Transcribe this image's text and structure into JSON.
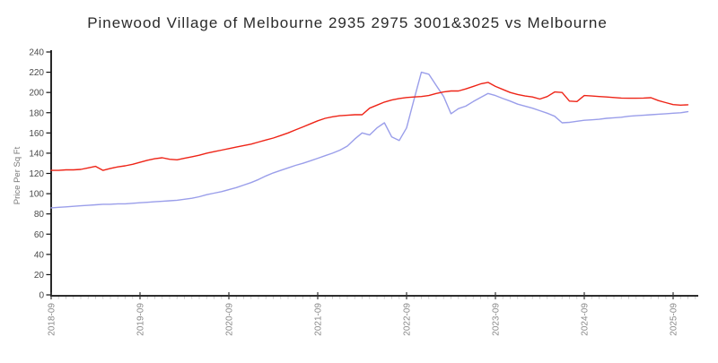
{
  "title": "Pinewood Village of Melbourne 2935 2975 3001&3025 vs Melbourne",
  "colors": {
    "red_line": "#ee2417",
    "blue_line": "#9a9eea",
    "axis": "#111111",
    "y_tick_label": "#4a4a4a",
    "x_tick_label": "#8a8a8a",
    "minor_tick": "#c9c9c9",
    "title_text": "#2a2a2a",
    "y_axis_label": "#777777",
    "background": "#ffffff"
  },
  "chart_data": {
    "type": "line",
    "title": "Pinewood Village of Melbourne 2935 2975 3001&3025 vs Melbourne",
    "xlabel": "",
    "ylabel": "Price Per Sq Ft",
    "ylim": [
      0,
      240
    ],
    "yticks": [
      0,
      20,
      40,
      60,
      80,
      100,
      120,
      140,
      160,
      180,
      200,
      220,
      240
    ],
    "grid": false,
    "legend_position": "none",
    "x_unit": "month",
    "x_start": "2018-09",
    "x_end": "2025-11",
    "xtick_labels": [
      "2018-09",
      "2019-09",
      "2020-09",
      "2021-09",
      "2022-09",
      "2023-09",
      "2024-09",
      "2025-09"
    ],
    "xtick_month_indices": [
      0,
      12,
      24,
      36,
      48,
      60,
      72,
      84
    ],
    "xtick_rotation_deg": -90,
    "series": [
      {
        "name": "blue-line",
        "color": "#9a9eea",
        "values": [
          86,
          86.5,
          87,
          87.5,
          88,
          88.5,
          89,
          89.5,
          89.5,
          90,
          90,
          90.5,
          91,
          91.5,
          92,
          92.5,
          93,
          93.5,
          94.5,
          95.5,
          97,
          99,
          100.5,
          102,
          104,
          106,
          108.5,
          111,
          114,
          117.5,
          120.5,
          123,
          125.5,
          128,
          130,
          132.5,
          135,
          137.5,
          140,
          143,
          147,
          154,
          160,
          158,
          165,
          170,
          156,
          152.5,
          165,
          193,
          220,
          218,
          207,
          196,
          179,
          184,
          186.5,
          191,
          195,
          199,
          197,
          194,
          191.5,
          188.5,
          186.5,
          184.5,
          182,
          179.5,
          176.5,
          170,
          170.5,
          171.5,
          172.5,
          173,
          173.5,
          174.5,
          175,
          175.5,
          176.5,
          177,
          177.5,
          178,
          178.5,
          179,
          179.5,
          180,
          181
        ]
      },
      {
        "name": "red-line",
        "color": "#ee2417",
        "values": [
          123,
          123,
          123.5,
          123.5,
          124,
          125.5,
          127,
          123,
          125,
          126.5,
          127.5,
          129,
          131,
          133,
          134.5,
          135.5,
          134,
          133.5,
          135,
          136.5,
          138,
          140,
          141.5,
          143,
          144.5,
          146,
          147.5,
          149,
          151,
          153,
          155,
          157.5,
          160,
          163,
          166,
          169,
          172,
          174.5,
          176,
          177,
          177.5,
          178,
          178,
          184.5,
          187.5,
          190.5,
          192.5,
          194,
          195,
          195.5,
          196,
          197,
          199,
          200.5,
          201.5,
          201.5,
          203.5,
          206,
          208.5,
          210,
          206,
          203,
          200,
          198,
          196.5,
          195.5,
          193.5,
          196,
          200.5,
          200,
          191.5,
          191,
          197,
          196.5,
          196,
          195.5,
          195,
          194.5,
          194.3,
          194.3,
          194.5,
          194.8,
          192,
          190,
          188,
          187.5,
          187.8
        ]
      }
    ]
  }
}
